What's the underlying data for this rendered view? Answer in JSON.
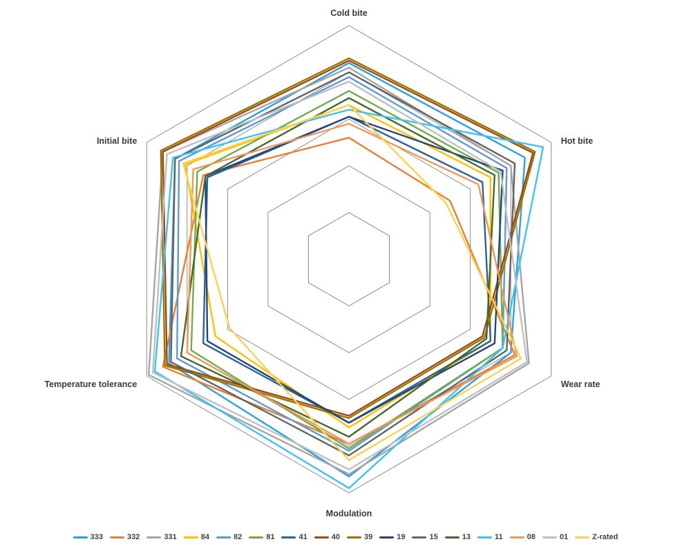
{
  "chart_data": {
    "type": "radar",
    "title": "",
    "axes": [
      "Cold bite",
      "Hot bite",
      "Wear rate",
      "Modulation",
      "Temperature tolerance",
      "Initial bite"
    ],
    "scale": {
      "min": 0,
      "max": 5,
      "grid_rings": [
        1,
        2,
        3,
        4,
        5
      ],
      "tick_labels_visible": false
    },
    "grid": {
      "shape": "hexagon",
      "color": "#8c8c8c",
      "spokes_visible": false
    },
    "legend": {
      "position": "bottom"
    },
    "series": [
      {
        "name": "333",
        "color": "#2BA0E0",
        "values": [
          4.2,
          4.35,
          4.0,
          4.65,
          4.45,
          4.3
        ]
      },
      {
        "name": "332",
        "color": "#ED7D31",
        "values": [
          2.6,
          2.5,
          4.1,
          3.95,
          4.6,
          3.6
        ]
      },
      {
        "name": "331",
        "color": "#A5A5A5",
        "values": [
          4.1,
          4.0,
          4.45,
          4.6,
          4.95,
          4.6
        ]
      },
      {
        "name": "84",
        "color": "#FFC000",
        "values": [
          3.3,
          3.5,
          3.5,
          3.6,
          3.3,
          4.05
        ]
      },
      {
        "name": "82",
        "color": "#5B9BD5",
        "values": [
          3.9,
          3.9,
          3.8,
          4.1,
          4.25,
          4.2
        ]
      },
      {
        "name": "81",
        "color": "#70AD47",
        "values": [
          3.6,
          3.7,
          3.8,
          4.05,
          3.9,
          3.75
        ]
      },
      {
        "name": "41",
        "color": "#28629C",
        "values": [
          3.05,
          3.3,
          3.5,
          3.5,
          3.6,
          3.5
        ]
      },
      {
        "name": "40",
        "color": "#9E480E",
        "values": [
          4.25,
          4.55,
          3.3,
          3.35,
          4.5,
          4.6
        ]
      },
      {
        "name": "39",
        "color": "#997300",
        "values": [
          4.3,
          4.6,
          3.35,
          3.4,
          4.55,
          4.65
        ]
      },
      {
        "name": "19",
        "color": "#264478",
        "values": [
          3.05,
          3.8,
          3.6,
          3.5,
          3.5,
          3.55
        ]
      },
      {
        "name": "15",
        "color": "#636363",
        "values": [
          4.0,
          4.1,
          3.9,
          4.2,
          4.4,
          4.3
        ]
      },
      {
        "name": "13",
        "color": "#43682B",
        "values": [
          3.45,
          3.6,
          3.4,
          3.8,
          4.15,
          3.55
        ]
      },
      {
        "name": "11",
        "color": "#3EC1F3",
        "values": [
          3.2,
          4.8,
          3.8,
          4.9,
          4.8,
          4.35
        ]
      },
      {
        "name": "08",
        "color": "#F1975A",
        "values": [
          2.9,
          3.2,
          4.15,
          3.95,
          4.0,
          3.85
        ]
      },
      {
        "name": "01",
        "color": "#BFBFBF",
        "values": [
          3.8,
          3.75,
          4.4,
          4.5,
          4.85,
          4.5
        ]
      },
      {
        "name": "Z-rated",
        "color": "#FFD04D",
        "values": [
          3.3,
          2.4,
          4.25,
          4.3,
          2.95,
          4.1
        ]
      }
    ]
  }
}
